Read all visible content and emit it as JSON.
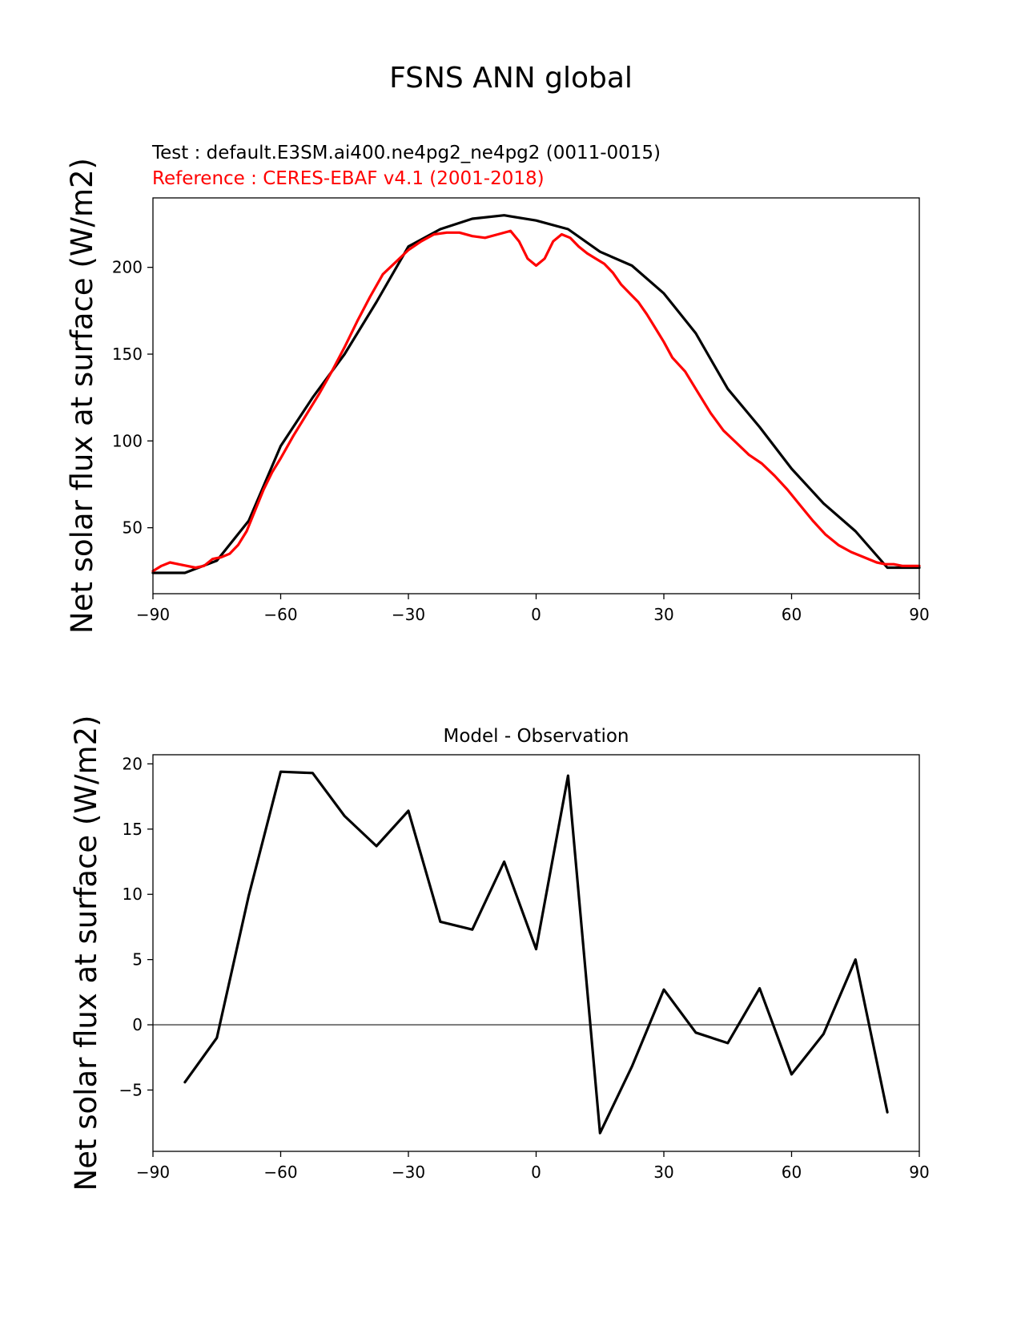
{
  "figure": {
    "title": "FSNS ANN global",
    "test_label": "Test : default.E3SM.ai400.ne4pg2_ne4pg2 (0011-0015)",
    "reference_label": "Reference : CERES-EBAF v4.1 (2001-2018)"
  },
  "colors": {
    "test": "#000000",
    "reference": "#ff0000",
    "zero_line": "#808080"
  },
  "chart_data": [
    {
      "type": "line",
      "title": "",
      "xlabel": "",
      "ylabel": "Net solar flux at surface (W/m2)",
      "xlim": [
        -90,
        90
      ],
      "ylim": [
        12,
        240
      ],
      "xticks": [
        -90,
        -60,
        -30,
        0,
        30,
        60,
        90
      ],
      "xtick_labels": [
        "−90",
        "−60",
        "−30",
        "0",
        "30",
        "60",
        "90"
      ],
      "yticks": [
        50,
        100,
        150,
        200
      ],
      "ytick_labels": [
        "50",
        "100",
        "150",
        "200"
      ],
      "grid": false,
      "series": [
        {
          "name": "Test : default.E3SM.ai400.ne4pg2_ne4pg2 (0011-0015)",
          "color": "#000000",
          "x": [
            -90,
            -82.5,
            -75,
            -67.5,
            -60,
            -52.5,
            -45,
            -37.5,
            -30,
            -22.5,
            -15,
            -7.5,
            0,
            7.5,
            15,
            22.5,
            30,
            37.5,
            45,
            52.5,
            60,
            67.5,
            75,
            82.5,
            90
          ],
          "y": [
            24,
            24,
            31,
            54,
            97,
            125,
            150,
            180,
            212,
            222,
            228,
            230,
            227,
            222,
            209,
            201,
            185,
            162,
            130,
            108,
            84,
            64,
            48,
            27,
            27
          ]
        },
        {
          "name": "Reference : CERES-EBAF v4.1 (2001-2018)",
          "color": "#ff0000",
          "x": [
            -90,
            -88,
            -86,
            -84,
            -82,
            -80,
            -78,
            -76,
            -74,
            -72,
            -70,
            -68,
            -66,
            -64,
            -62,
            -60,
            -57,
            -54,
            -51,
            -48,
            -45,
            -42,
            -39,
            -36,
            -33,
            -30,
            -27,
            -24,
            -21,
            -18,
            -15,
            -12,
            -9,
            -6,
            -4,
            -2,
            0,
            2,
            4,
            6,
            8,
            10,
            12,
            14,
            16,
            18,
            20,
            22,
            24,
            26,
            28,
            30,
            32,
            35,
            38,
            41,
            44,
            47,
            50,
            53,
            56,
            59,
            62,
            65,
            68,
            71,
            74,
            77,
            80,
            82,
            84,
            86,
            88,
            90
          ],
          "y": [
            25,
            28,
            30,
            29,
            28,
            27,
            28,
            32,
            33,
            35,
            40,
            48,
            60,
            72,
            82,
            90,
            103,
            115,
            127,
            140,
            154,
            169,
            183,
            196,
            203,
            210,
            215,
            219,
            220,
            220,
            218,
            217,
            219,
            221,
            215,
            205,
            201,
            205,
            215,
            219,
            217,
            212,
            208,
            205,
            202,
            197,
            190,
            185,
            180,
            173,
            165,
            157,
            148,
            140,
            128,
            116,
            106,
            99,
            92,
            87,
            80,
            72,
            63,
            54,
            46,
            40,
            36,
            33,
            30,
            29,
            29,
            28,
            28,
            28
          ]
        }
      ]
    },
    {
      "type": "line",
      "title": "Model - Observation",
      "xlabel": "",
      "ylabel": "Net solar flux at surface (W/m2)",
      "xlim": [
        -90,
        90
      ],
      "ylim": [
        -9.7,
        20.7
      ],
      "xticks": [
        -90,
        -60,
        -30,
        0,
        30,
        60,
        90
      ],
      "xtick_labels": [
        "−90",
        "−60",
        "−30",
        "0",
        "30",
        "60",
        "90"
      ],
      "yticks": [
        -5,
        0,
        5,
        10,
        15,
        20
      ],
      "ytick_labels": [
        "−5",
        "0",
        "5",
        "10",
        "15",
        "20"
      ],
      "grid": false,
      "zero_line": true,
      "series": [
        {
          "color": "#000000",
          "x": [
            -82.5,
            -75,
            -67.5,
            -60,
            -52.5,
            -45,
            -37.5,
            -30,
            -22.5,
            -15,
            -7.5,
            0,
            7.5,
            15,
            22.5,
            30,
            37.5,
            45,
            52.5,
            60,
            67.5,
            75,
            82.5
          ],
          "y": [
            -4.4,
            -1.0,
            9.9,
            19.4,
            19.3,
            16.0,
            13.7,
            16.4,
            7.9,
            7.3,
            12.5,
            5.8,
            19.1,
            -8.3,
            -3.2,
            2.7,
            -0.6,
            -1.4,
            2.8,
            -3.8,
            -0.7,
            5.0,
            -6.7
          ]
        }
      ]
    }
  ]
}
